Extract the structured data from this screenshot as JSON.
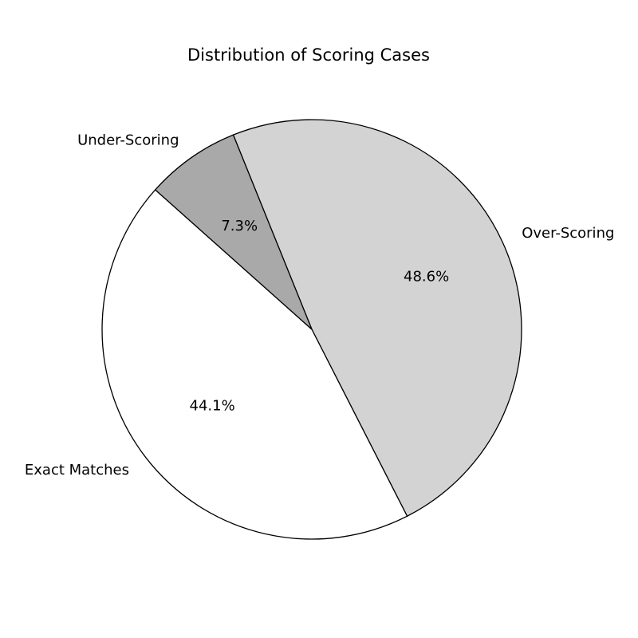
{
  "chart_data": {
    "type": "pie",
    "title": "Distribution of Scoring Cases",
    "slices": [
      {
        "label": "Over-Scoring",
        "value": 48.6,
        "pct_label": "48.6%",
        "color": "#d3d3d3"
      },
      {
        "label": "Exact Matches",
        "value": 44.1,
        "pct_label": "44.1%",
        "color": "#ffffff"
      },
      {
        "label": "Under-Scoring",
        "value": 7.3,
        "pct_label": "7.3%",
        "color": "#a9a9a9"
      }
    ],
    "start_angle_deg": 112,
    "direction": "clockwise",
    "edge_color": "#000000",
    "legend": "none"
  }
}
